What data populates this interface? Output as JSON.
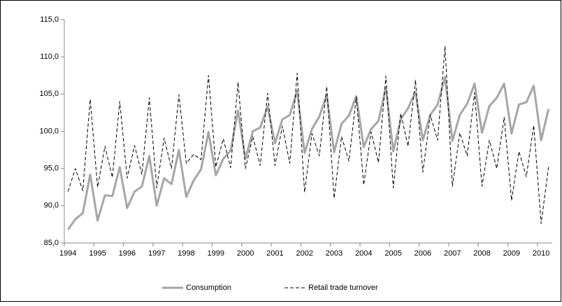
{
  "chart_data": {
    "type": "line",
    "categories": [
      "1994",
      null,
      null,
      null,
      "1995",
      null,
      null,
      null,
      "1996",
      null,
      null,
      null,
      "1997",
      null,
      null,
      null,
      "1998",
      null,
      null,
      null,
      "1999",
      null,
      null,
      null,
      "2000",
      null,
      null,
      null,
      "2001",
      null,
      null,
      null,
      "2002",
      null,
      null,
      null,
      "2003",
      null,
      null,
      null,
      "2004",
      null,
      null,
      null,
      "2005",
      null,
      null,
      null,
      "2006",
      null,
      null,
      null,
      "2007",
      null,
      null,
      null,
      "2008",
      null,
      null,
      null,
      "2009",
      null,
      null,
      null,
      "2010",
      null
    ],
    "series": [
      {
        "name": "Consumption",
        "color": "#a6a6a6",
        "dashed": false,
        "width": 3,
        "values": [
          86.8,
          88.2,
          89.0,
          94.2,
          88.0,
          91.4,
          91.3,
          95.2,
          89.7,
          91.9,
          92.6,
          96.7,
          90.0,
          93.7,
          92.9,
          97.5,
          91.2,
          93.4,
          94.9,
          99.9,
          94.1,
          96.3,
          97.4,
          102.8,
          96.3,
          100.0,
          100.5,
          103.3,
          98.4,
          101.6,
          102.2,
          105.4,
          97.1,
          100.3,
          102.0,
          104.9,
          97.2,
          101.0,
          102.1,
          104.7,
          97.9,
          100.3,
          101.4,
          105.9,
          97.3,
          101.6,
          103.1,
          105.3,
          98.8,
          102.2,
          103.6,
          107.3,
          98.7,
          102.2,
          103.7,
          106.4,
          99.8,
          103.4,
          104.5,
          106.4,
          99.7,
          103.6,
          103.9,
          106.1,
          98.8,
          103.0
        ]
      },
      {
        "name": "Retail trade turnover",
        "color": "#000000",
        "dashed": true,
        "width": 1,
        "values": [
          91.9,
          95.0,
          92.0,
          104.3,
          92.5,
          98.0,
          93.8,
          104.0,
          93.7,
          98.1,
          94.2,
          104.5,
          92.4,
          99.1,
          95.0,
          104.9,
          95.7,
          96.9,
          96.2,
          107.5,
          95.2,
          99.0,
          95.1,
          106.6,
          95.0,
          99.3,
          95.4,
          105.1,
          95.4,
          100.7,
          95.7,
          107.8,
          91.8,
          99.7,
          96.7,
          106.0,
          91.0,
          99.3,
          96.0,
          104.6,
          92.8,
          99.9,
          95.8,
          107.4,
          92.4,
          102.4,
          98.0,
          106.9,
          94.5,
          102.2,
          98.8,
          111.4,
          92.6,
          99.8,
          96.7,
          105.2,
          92.6,
          98.8,
          95.0,
          101.9,
          90.7,
          97.3,
          93.9,
          100.8,
          87.6,
          95.2
        ]
      }
    ],
    "ylim": [
      85,
      115
    ],
    "yticks": [
      {
        "value": 85,
        "label": "85,0"
      },
      {
        "value": 90,
        "label": "90,0"
      },
      {
        "value": 95,
        "label": "95,0"
      },
      {
        "value": 100,
        "label": "100,0"
      },
      {
        "value": 105,
        "label": "105,0"
      },
      {
        "value": 110,
        "label": "110,0"
      },
      {
        "value": 115,
        "label": "115,0"
      }
    ],
    "grid": false,
    "legend": "bottom"
  }
}
